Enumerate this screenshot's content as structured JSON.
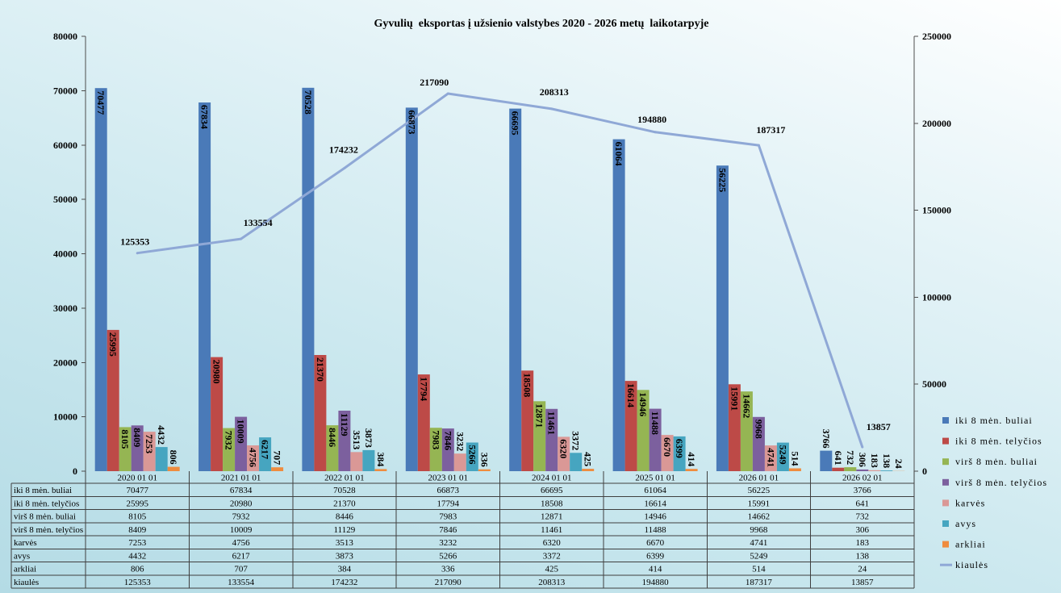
{
  "chart_data": {
    "type": "bar",
    "title": "Gyvulių  eksportas į užsienio valstybes 2020 - 2026 metų  laikotarpyje",
    "categories": [
      "2020 01 01",
      "2021 01 01",
      "2022 01 01",
      "2023 01 01",
      "2024 01 01",
      "2025 01 01",
      "2026 01 01",
      "2026 02 01"
    ],
    "series": [
      {
        "name": "iki 8 mėn. buliai",
        "type": "bar",
        "axis": "left",
        "color": "#4a7ab8",
        "values": [
          70477,
          67834,
          70528,
          66873,
          66695,
          61064,
          56225,
          3766
        ]
      },
      {
        "name": "iki 8 mėn. telyčios",
        "type": "bar",
        "axis": "left",
        "color": "#bd4a47",
        "values": [
          25995,
          20980,
          21370,
          17794,
          18508,
          16614,
          15991,
          641
        ]
      },
      {
        "name": "virš 8 mėn. buliai",
        "type": "bar",
        "axis": "left",
        "color": "#95b553",
        "values": [
          8105,
          7932,
          8446,
          7983,
          12871,
          14946,
          14662,
          732
        ]
      },
      {
        "name": "virš 8 mėn. telyčios",
        "type": "bar",
        "axis": "left",
        "color": "#7c609e",
        "values": [
          8409,
          10009,
          11129,
          7846,
          11461,
          11488,
          9968,
          306
        ]
      },
      {
        "name": "karvės",
        "type": "bar",
        "axis": "left",
        "color": "#da9896",
        "values": [
          7253,
          4756,
          3513,
          3232,
          6320,
          6670,
          4741,
          183
        ]
      },
      {
        "name": "avys",
        "type": "bar",
        "axis": "left",
        "color": "#46a5c0",
        "values": [
          4432,
          6217,
          3873,
          5266,
          3372,
          6399,
          5249,
          138
        ]
      },
      {
        "name": "arkliai",
        "type": "bar",
        "axis": "left",
        "color": "#ef8c3e",
        "values": [
          806,
          707,
          384,
          336,
          425,
          414,
          514,
          24
        ]
      },
      {
        "name": "kiaulės",
        "type": "line",
        "axis": "right",
        "color": "#8fa8d6",
        "values": [
          125353,
          133554,
          174232,
          217090,
          208313,
          194880,
          187317,
          13857
        ]
      }
    ],
    "y_left": {
      "min": 0,
      "max": 80000,
      "ticks": [
        0,
        10000,
        20000,
        30000,
        40000,
        50000,
        60000,
        70000,
        80000
      ]
    },
    "y_right": {
      "min": 0,
      "max": 250000,
      "ticks": [
        0,
        50000,
        100000,
        150000,
        200000,
        250000
      ]
    },
    "data_labels": true,
    "data_table": true,
    "legend_position": "right",
    "grid": false
  }
}
